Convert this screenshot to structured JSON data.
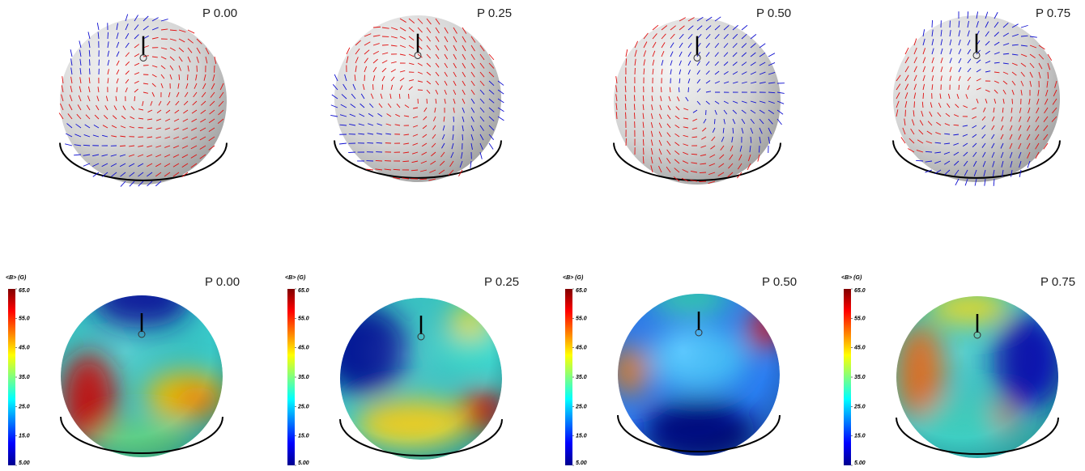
{
  "top_row": {
    "panels": [
      {
        "phase": "P 0.00"
      },
      {
        "phase": "P 0.25"
      },
      {
        "phase": "P 0.50"
      },
      {
        "phase": "P 0.75"
      }
    ]
  },
  "bottom_row": {
    "panels": [
      {
        "phase": "P 0.00",
        "colorbar": {
          "title": "<B> (G)",
          "ticks": [
            {
              "value": 65,
              "label": "65.0"
            },
            {
              "value": 55,
              "label": "55.0"
            },
            {
              "value": 45,
              "label": "45.0"
            },
            {
              "value": 35,
              "label": "35.0"
            },
            {
              "value": 25,
              "label": "25.0"
            },
            {
              "value": 15,
              "label": "15.0"
            },
            {
              "value": 5,
              "label": "5.00"
            }
          ]
        }
      },
      {
        "phase": "P 0.25",
        "colorbar": {
          "title": "<B> (G)",
          "ticks": [
            {
              "value": 65,
              "label": "65.0"
            },
            {
              "value": 55,
              "label": "55.0"
            },
            {
              "value": 45,
              "label": "45.0"
            },
            {
              "value": 35,
              "label": "35.0"
            },
            {
              "value": 25,
              "label": "25.0"
            },
            {
              "value": 15,
              "label": "15.0"
            },
            {
              "value": 5,
              "label": "5.00"
            }
          ]
        }
      },
      {
        "phase": "P 0.50",
        "colorbar": {
          "title": "<B> (G)",
          "ticks": [
            {
              "value": 65,
              "label": "65.0"
            },
            {
              "value": 55,
              "label": "55.0"
            },
            {
              "value": 45,
              "label": "45.0"
            },
            {
              "value": 35,
              "label": "35.0"
            },
            {
              "value": 25,
              "label": "25.0"
            },
            {
              "value": 15,
              "label": "15.0"
            },
            {
              "value": 5,
              "label": "5.00"
            }
          ]
        }
      },
      {
        "phase": "P 0.75",
        "colorbar": {
          "title": "<B> (G)",
          "ticks": [
            {
              "value": 65,
              "label": "65.0"
            },
            {
              "value": 55,
              "label": "55.0"
            },
            {
              "value": 45,
              "label": "45.0"
            },
            {
              "value": 35,
              "label": "35.0"
            },
            {
              "value": 25,
              "label": "25.0"
            },
            {
              "value": 15,
              "label": "15.0"
            },
            {
              "value": 5,
              "label": "5.00"
            }
          ]
        }
      }
    ]
  }
}
